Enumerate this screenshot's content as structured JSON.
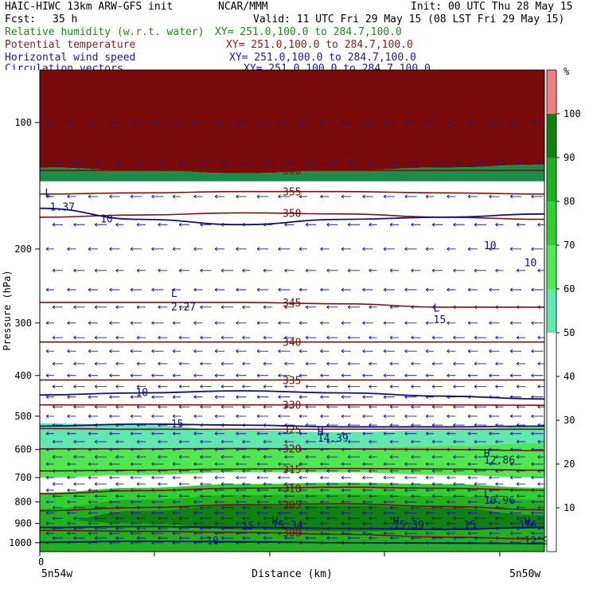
{
  "header": {
    "model": "HAIC-HIWC 13km ARW-GFS init",
    "org": "NCAR/MMM",
    "init": "Init: 00 UTC Thu 28 May 15",
    "fcst_label": "Fcst:",
    "fcst_value": "35 h",
    "valid": "Valid: 11 UTC Fri 29 May 15 (08 LST Fri 29 May 15)",
    "fields": [
      {
        "name": "Relative humidity (w.r.t. water)",
        "xy": "XY= 251.0,100.0 to 284.7,100.0",
        "color": "#1a8c1a"
      },
      {
        "name": "Potential temperature",
        "xy": "XY= 251.0,100.0 to 284.7,100.0",
        "color": "#8b1a1a"
      },
      {
        "name": "Horizontal wind speed",
        "xy": "XY= 251.0,100.0 to 284.7,100.0",
        "color": "#1a1a8c"
      },
      {
        "name": "Circulation vectors",
        "xy": "XY= 251.0,100.0 to 284.7,100.0",
        "color": "#1a1a8c"
      }
    ]
  },
  "chart_data": {
    "type": "cross-section",
    "xlabel": "Distance (km)",
    "ylabel": "Pressure (hPa)",
    "x_tick_labels": [
      "0"
    ],
    "x_end_labels": [
      "5n54w",
      "5n50w"
    ],
    "y_ticks": [
      100,
      200,
      300,
      400,
      500,
      600,
      700,
      800,
      900,
      1000
    ],
    "ylim": [
      1050,
      75
    ],
    "y_scale": "log-pressure",
    "colorbar": {
      "unit": "%",
      "levels": [
        10,
        20,
        30,
        40,
        50,
        60,
        70,
        80,
        90,
        100
      ],
      "colors": [
        "#ffffff",
        "#ffffff",
        "#ffffff",
        "#ffffff",
        "#ffffff",
        "#60e8b0",
        "#50e850",
        "#30d030",
        "#20b020",
        "#108010",
        "#f08080"
      ]
    },
    "theta_contours": [
      {
        "label": "300",
        "p": [
          935,
          940,
          945,
          955,
          970,
          980
        ]
      },
      {
        "label": "305",
        "p": [
          840,
          825,
          812,
          808,
          820,
          835
        ]
      },
      {
        "label": "310",
        "p": [
          765,
          752,
          742,
          738,
          742,
          750
        ]
      },
      {
        "label": "315",
        "p": [
          675,
          672,
          668,
          666,
          668,
          672
        ]
      },
      {
        "label": "320",
        "p": [
          598,
          598,
          597,
          598,
          600,
          604
        ]
      },
      {
        "label": "325",
        "p": [
          535,
          537,
          537,
          537,
          537,
          537
        ]
      },
      {
        "label": "330",
        "p": [
          470,
          470,
          470,
          470,
          470,
          471
        ]
      },
      {
        "label": "335",
        "p": [
          410,
          410,
          410,
          410,
          410,
          410
        ]
      },
      {
        "label": "340",
        "p": [
          333,
          333,
          333,
          333,
          333,
          333
        ]
      },
      {
        "label": "345",
        "p": [
          268,
          268,
          268,
          270,
          275,
          275
        ]
      },
      {
        "label": "350",
        "p": [
          168,
          166,
          164,
          165,
          168,
          170
        ]
      },
      {
        "label": "355",
        "p": [
          148,
          147,
          146,
          146,
          147,
          148
        ]
      },
      {
        "label": "360",
        "p": [
          130,
          130,
          130,
          130,
          130,
          130
        ]
      }
    ],
    "wind_contours": [
      {
        "label": "10",
        "p": [
          160,
          170,
          175,
          170,
          168,
          165
        ]
      },
      {
        "label": "10",
        "p": [
          445,
          440,
          435,
          440,
          448,
          455
        ]
      },
      {
        "label": "15",
        "p": [
          528,
          522,
          525,
          530,
          530,
          528
        ]
      },
      {
        "label": "10",
        "p": [
          998,
          992,
          995,
          1000,
          1002,
          1005
        ]
      },
      {
        "label": "15",
        "p": [
          920,
          915,
          920,
          925,
          930,
          920
        ]
      }
    ],
    "annotations": [
      {
        "text": "L",
        "x": 0.01,
        "p": 150
      },
      {
        "text": "1.37",
        "x": 0.02,
        "p": 162
      },
      {
        "text": "L",
        "x": 0.26,
        "p": 260
      },
      {
        "text": "2.27",
        "x": 0.26,
        "p": 280
      },
      {
        "text": "L",
        "x": 0.78,
        "p": 282
      },
      {
        "text": "15",
        "x": 0.78,
        "p": 300
      },
      {
        "text": "H",
        "x": 0.55,
        "p": 555
      },
      {
        "text": "14.39",
        "x": 0.55,
        "p": 575
      },
      {
        "text": "H",
        "x": 0.88,
        "p": 625
      },
      {
        "text": "12.86",
        "x": 0.88,
        "p": 648
      },
      {
        "text": "L",
        "x": 0.88,
        "p": 780
      },
      {
        "text": "10.96",
        "x": 0.88,
        "p": 808
      },
      {
        "text": "H",
        "x": 0.46,
        "p": 905
      },
      {
        "text": "15.34",
        "x": 0.46,
        "p": 925
      },
      {
        "text": "H",
        "x": 0.7,
        "p": 905
      },
      {
        "text": "15.39",
        "x": 0.7,
        "p": 925
      },
      {
        "text": "H",
        "x": 0.96,
        "p": 905
      },
      {
        "text": "16.",
        "x": 0.96,
        "p": 925
      },
      {
        "text": "15",
        "x": 0.84,
        "p": 925
      },
      {
        "text": "15",
        "x": 0.95,
        "p": 925
      },
      {
        "text": "12.99",
        "x": 0.96,
        "p": 1010
      },
      {
        "text": "10",
        "x": 0.88,
        "p": 200
      },
      {
        "text": "10",
        "x": 0.96,
        "p": 220
      }
    ]
  }
}
